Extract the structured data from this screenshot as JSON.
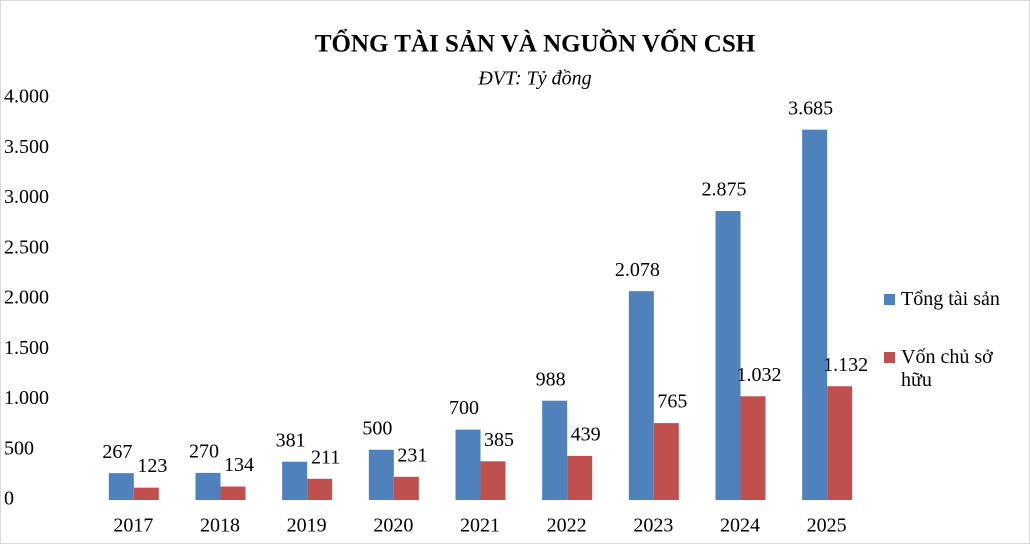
{
  "chart_data": {
    "type": "bar",
    "title": "TỔNG TÀI SẢN VÀ NGUỒN VỐN CSH",
    "subtitle": "ĐVT: Tỷ đồng",
    "categories": [
      "2017",
      "2018",
      "2019",
      "2020",
      "2021",
      "2022",
      "2023",
      "2024",
      "2025"
    ],
    "series": [
      {
        "name": "Tổng tài sản",
        "color": "#4f81bd",
        "values": [
          267,
          270,
          381,
          500,
          700,
          988,
          2078,
          2875,
          3685
        ],
        "value_labels": [
          "267",
          "270",
          "381",
          "500",
          "700",
          "988",
          "2.078",
          "2.875",
          "3.685"
        ]
      },
      {
        "name": "Vốn chủ sở hữu",
        "color": "#c0504d",
        "values": [
          123,
          134,
          211,
          231,
          385,
          439,
          765,
          1032,
          1132
        ],
        "value_labels": [
          "123",
          "134",
          "211",
          "231",
          "385",
          "439",
          "765",
          "1.032",
          "1.132"
        ]
      }
    ],
    "ylim": [
      0,
      4000
    ],
    "yticks": [
      0,
      500,
      {
        "value": 1000,
        "label": "1.000"
      },
      {
        "value": 1500,
        "label": "1.500"
      },
      {
        "value": 2000,
        "label": "2.000"
      },
      {
        "value": 2500,
        "label": "2.500"
      },
      {
        "value": 3000,
        "label": "3.000"
      },
      {
        "value": 3500,
        "label": "3.500"
      },
      {
        "value": 4000,
        "label": "4.000"
      }
    ],
    "legend": "right"
  }
}
